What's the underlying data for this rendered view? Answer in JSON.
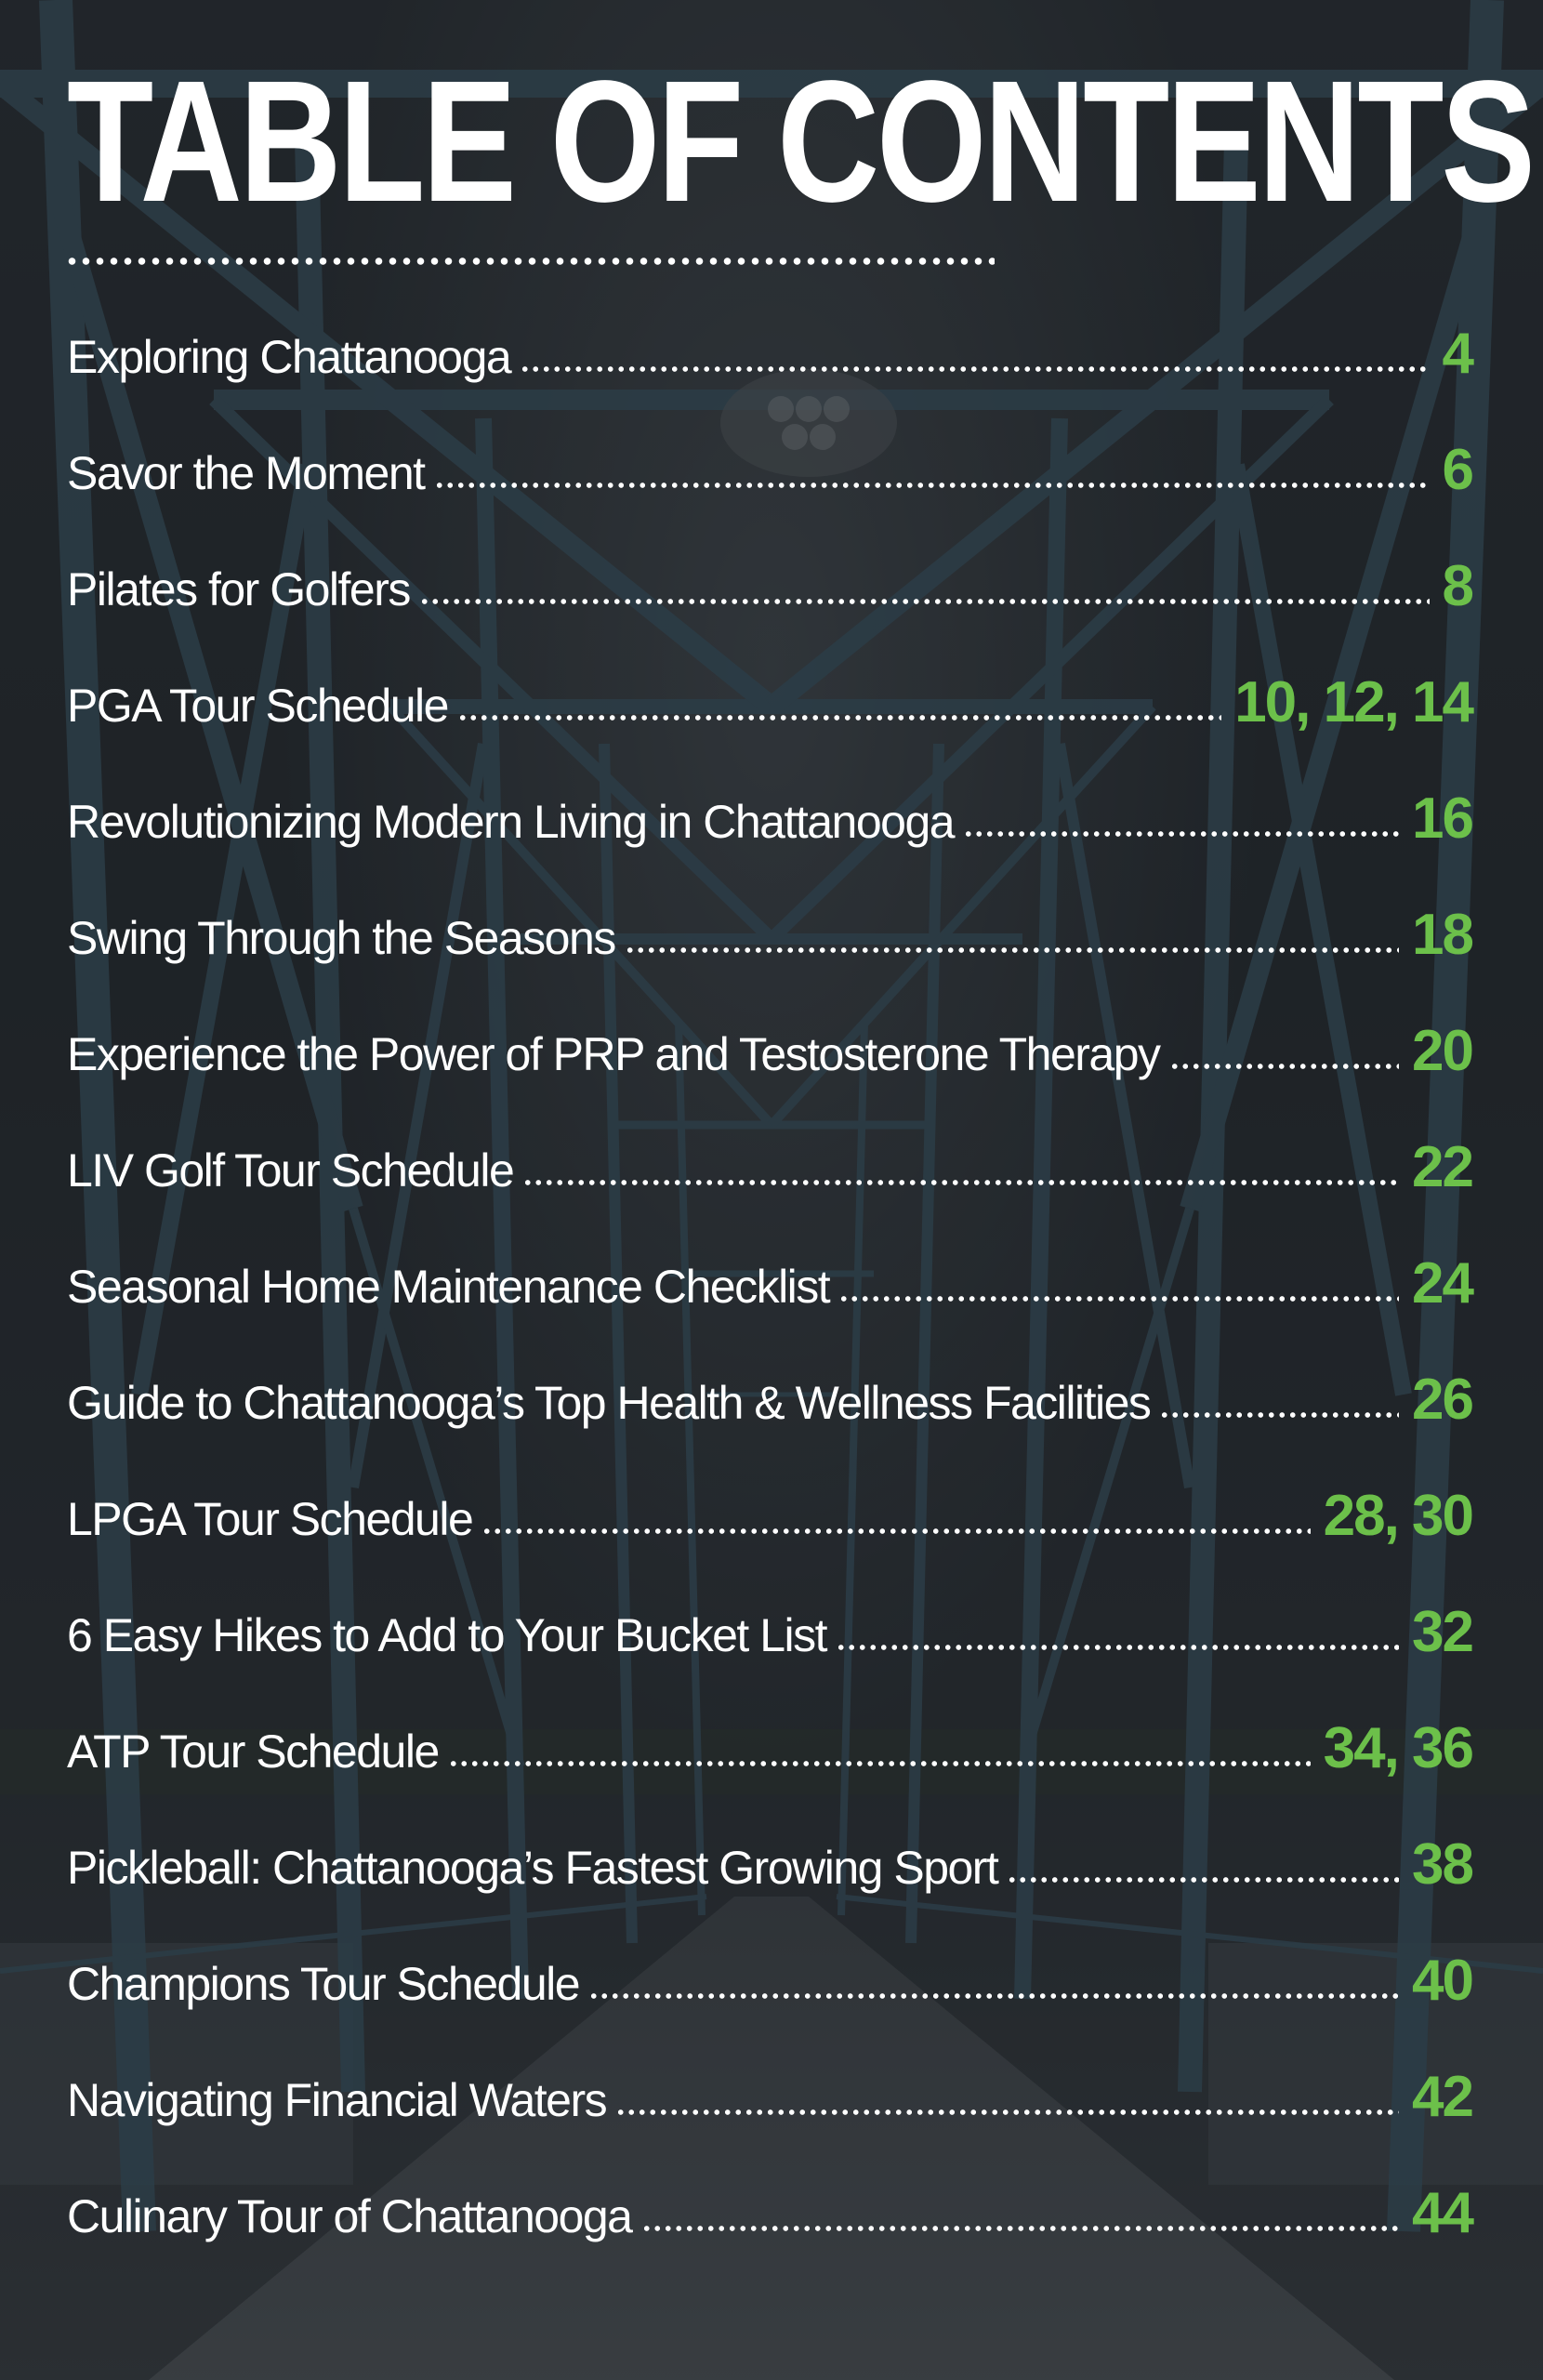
{
  "title": "TABLE OF CONTENTS",
  "colors": {
    "title": "#ffffff",
    "entry_text": "#ffffff",
    "page_numbers": "#6cc04a",
    "background_structure": "#3c5866"
  },
  "background": {
    "description_icon": "steel-truss-bridge-photo"
  },
  "entries": [
    {
      "title": "Exploring Chattanooga",
      "pages": "4"
    },
    {
      "title": "Savor the Moment",
      "pages": "6"
    },
    {
      "title": "Pilates for Golfers",
      "pages": "8"
    },
    {
      "title": "PGA Tour Schedule",
      "pages": "10, 12, 14"
    },
    {
      "title": "Revolutionizing Modern Living in Chattanooga",
      "pages": "16"
    },
    {
      "title": "Swing Through the Seasons",
      "pages": "18"
    },
    {
      "title": "Experience the Power of PRP and Testosterone Therapy",
      "pages": "20"
    },
    {
      "title": "LIV Golf Tour Schedule",
      "pages": "22"
    },
    {
      "title": "Seasonal Home Maintenance Checklist",
      "pages": "24"
    },
    {
      "title": "Guide to Chattanooga’s Top Health & Wellness Facilities",
      "pages": "26"
    },
    {
      "title": "LPGA Tour Schedule",
      "pages": "28, 30"
    },
    {
      "title": "6 Easy Hikes to Add to Your Bucket List",
      "pages": "32"
    },
    {
      "title": "ATP Tour Schedule",
      "pages": "34, 36"
    },
    {
      "title": "Pickleball: Chattanooga’s Fastest Growing Sport",
      "pages": "38"
    },
    {
      "title": "Champions Tour Schedule",
      "pages": "40"
    },
    {
      "title": "Navigating Financial Waters",
      "pages": "42"
    },
    {
      "title": "Culinary Tour of Chattanooga",
      "pages": "44"
    }
  ]
}
